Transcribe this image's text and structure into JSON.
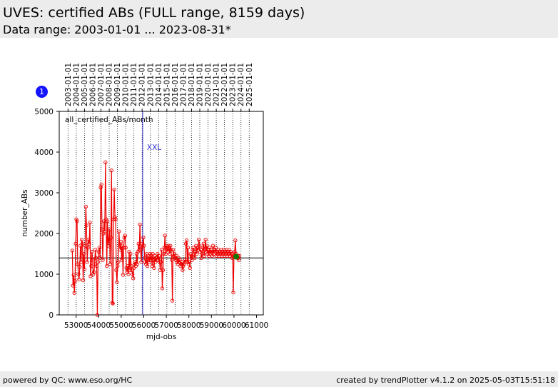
{
  "header": {
    "title": "UVES: certified ABs (FULL range, 8159 days)",
    "subtitle": "Data range: 2003-01-01 ... 2023-08-31*"
  },
  "badge": {
    "label": "1",
    "color": "#1414ff"
  },
  "footer": {
    "left": "powered by QC: www.eso.org/HC",
    "right": "created by trendPlotter v4.1.2 on 2025-05-03T15:51:18"
  },
  "colors": {
    "series": "#ee0000",
    "last_point": "#117700",
    "marker": "#3333cc",
    "reference": "#000000"
  },
  "chart_data": {
    "type": "line",
    "xlabel": "mjd-obs",
    "ylabel": "number_ABs",
    "xlim": [
      52250,
      61300
    ],
    "ylim": [
      0,
      5000
    ],
    "xticks": [
      53000,
      54000,
      55000,
      56000,
      57000,
      58000,
      59000,
      60000,
      61000
    ],
    "yticks": [
      0,
      1000,
      2000,
      3000,
      4000,
      5000
    ],
    "year_ticks": [
      {
        "label": "2003-01-01",
        "mjd": 52640
      },
      {
        "label": "2004-01-01",
        "mjd": 53005
      },
      {
        "label": "2005-01-01",
        "mjd": 53371
      },
      {
        "label": "2006-01-01",
        "mjd": 53736
      },
      {
        "label": "2007-01-01",
        "mjd": 54101
      },
      {
        "label": "2008-01-01",
        "mjd": 54466
      },
      {
        "label": "2009-01-01",
        "mjd": 54832
      },
      {
        "label": "2010-01-01",
        "mjd": 55197
      },
      {
        "label": "2011-01-01",
        "mjd": 55562
      },
      {
        "label": "2012-01-01",
        "mjd": 55927
      },
      {
        "label": "2013-01-01",
        "mjd": 56293
      },
      {
        "label": "2014-01-01",
        "mjd": 56658
      },
      {
        "label": "2015-01-01",
        "mjd": 57023
      },
      {
        "label": "2016-01-01",
        "mjd": 57388
      },
      {
        "label": "2017-01-01",
        "mjd": 57754
      },
      {
        "label": "2018-01-01",
        "mjd": 58119
      },
      {
        "label": "2019-01-01",
        "mjd": 58484
      },
      {
        "label": "2020-01-01",
        "mjd": 58849
      },
      {
        "label": "2021-01-01",
        "mjd": 59215
      },
      {
        "label": "2022-01-01",
        "mjd": 59580
      },
      {
        "label": "2023-01-01",
        "mjd": 59945
      },
      {
        "label": "2024-01-01",
        "mjd": 60310
      },
      {
        "label": "2025-01-01",
        "mjd": 60676
      }
    ],
    "annotation": "all_certified_ABs/month",
    "marker_line": {
      "label": "XXL",
      "mjd": 55950
    },
    "reference_line": 1400,
    "series": [
      {
        "values": [
          [
            52830,
            1580
          ],
          [
            52860,
            720
          ],
          [
            52890,
            980
          ],
          [
            52920,
            540
          ],
          [
            52950,
            830
          ],
          [
            52980,
            1750
          ],
          [
            53010,
            2350
          ],
          [
            53040,
            2300
          ],
          [
            53070,
            1250
          ],
          [
            53100,
            1000
          ],
          [
            53130,
            870
          ],
          [
            53160,
            1180
          ],
          [
            53190,
            1700
          ],
          [
            53220,
            1300
          ],
          [
            53250,
            1850
          ],
          [
            53280,
            1750
          ],
          [
            53310,
            850
          ],
          [
            53340,
            1500
          ],
          [
            53370,
            1120
          ],
          [
            53400,
            1700
          ],
          [
            53430,
            2660
          ],
          [
            53460,
            2200
          ],
          [
            53490,
            1300
          ],
          [
            53520,
            1650
          ],
          [
            53550,
            1850
          ],
          [
            53580,
            1750
          ],
          [
            53610,
            2270
          ],
          [
            53640,
            950
          ],
          [
            53670,
            1200
          ],
          [
            53700,
            1550
          ],
          [
            53730,
            1350
          ],
          [
            53760,
            1000
          ],
          [
            53790,
            1050
          ],
          [
            53820,
            1250
          ],
          [
            53850,
            1600
          ],
          [
            53880,
            1400
          ],
          [
            53910,
            1200
          ],
          [
            53940,
            0
          ],
          [
            53970,
            1300
          ],
          [
            54000,
            1550
          ],
          [
            54030,
            1650
          ],
          [
            54060,
            1400
          ],
          [
            54090,
            3130
          ],
          [
            54120,
            3200
          ],
          [
            54150,
            2100
          ],
          [
            54180,
            1350
          ],
          [
            54210,
            2000
          ],
          [
            54240,
            2300
          ],
          [
            54270,
            2050
          ],
          [
            54300,
            3750
          ],
          [
            54330,
            2350
          ],
          [
            54360,
            1200
          ],
          [
            54390,
            2300
          ],
          [
            54420,
            1700
          ],
          [
            54450,
            1850
          ],
          [
            54480,
            2100
          ],
          [
            54510,
            1250
          ],
          [
            54540,
            1900
          ],
          [
            54570,
            3550
          ],
          [
            54600,
            300
          ],
          [
            54630,
            280
          ],
          [
            54660,
            2350
          ],
          [
            54690,
            3080
          ],
          [
            54720,
            2400
          ],
          [
            54750,
            2350
          ],
          [
            54780,
            1100
          ],
          [
            54810,
            800
          ],
          [
            54840,
            1200
          ],
          [
            54870,
            1300
          ],
          [
            54900,
            2050
          ],
          [
            54930,
            1700
          ],
          [
            54960,
            1600
          ],
          [
            54990,
            1800
          ],
          [
            55020,
            1350
          ],
          [
            55050,
            1700
          ],
          [
            55080,
            980
          ],
          [
            55110,
            1650
          ],
          [
            55140,
            1900
          ],
          [
            55170,
            1950
          ],
          [
            55200,
            1650
          ],
          [
            55230,
            1150
          ],
          [
            55260,
            1050
          ],
          [
            55290,
            1200
          ],
          [
            55320,
            1000
          ],
          [
            55350,
            1550
          ],
          [
            55380,
            1100
          ],
          [
            55410,
            1500
          ],
          [
            55440,
            1200
          ],
          [
            55470,
            1100
          ],
          [
            55500,
            1000
          ],
          [
            55530,
            900
          ],
          [
            55560,
            1150
          ],
          [
            55590,
            1250
          ],
          [
            55620,
            1300
          ],
          [
            55650,
            1200
          ],
          [
            55680,
            1500
          ],
          [
            55710,
            1250
          ],
          [
            55740,
            1550
          ],
          [
            55770,
            1750
          ],
          [
            55800,
            1600
          ],
          [
            55830,
            2220
          ],
          [
            55860,
            1600
          ],
          [
            55890,
            1300
          ],
          [
            55920,
            1750
          ],
          [
            55950,
            1650
          ],
          [
            55980,
            1900
          ],
          [
            56010,
            1700
          ],
          [
            56040,
            1400
          ],
          [
            56070,
            1300
          ],
          [
            56100,
            1250
          ],
          [
            56130,
            1500
          ],
          [
            56160,
            1200
          ],
          [
            56190,
            1350
          ],
          [
            56220,
            1450
          ],
          [
            56250,
            1300
          ],
          [
            56280,
            1500
          ],
          [
            56310,
            1350
          ],
          [
            56340,
            1450
          ],
          [
            56370,
            1200
          ],
          [
            56400,
            1500
          ],
          [
            56430,
            1350
          ],
          [
            56460,
            1150
          ],
          [
            56490,
            1450
          ],
          [
            56520,
            1300
          ],
          [
            56550,
            1400
          ],
          [
            56580,
            1350
          ],
          [
            56610,
            1500
          ],
          [
            56640,
            1350
          ],
          [
            56670,
            1450
          ],
          [
            56700,
            1300
          ],
          [
            56730,
            1100
          ],
          [
            56760,
            1300
          ],
          [
            56790,
            1600
          ],
          [
            56820,
            650
          ],
          [
            56850,
            1100
          ],
          [
            56880,
            1500
          ],
          [
            56910,
            1650
          ],
          [
            56940,
            1950
          ],
          [
            56970,
            1500
          ],
          [
            57000,
            1700
          ],
          [
            57030,
            1600
          ],
          [
            57060,
            1550
          ],
          [
            57090,
            1700
          ],
          [
            57120,
            1650
          ],
          [
            57150,
            1500
          ],
          [
            57180,
            1700
          ],
          [
            57210,
            1600
          ],
          [
            57240,
            1350
          ],
          [
            57270,
            350
          ],
          [
            57300,
            1600
          ],
          [
            57330,
            1450
          ],
          [
            57360,
            1500
          ],
          [
            57390,
            1400
          ],
          [
            57420,
            1350
          ],
          [
            57450,
            1450
          ],
          [
            57480,
            1300
          ],
          [
            57510,
            1250
          ],
          [
            57540,
            1400
          ],
          [
            57570,
            1300
          ],
          [
            57600,
            1350
          ],
          [
            57630,
            1200
          ],
          [
            57660,
            1250
          ],
          [
            57690,
            1300
          ],
          [
            57720,
            1100
          ],
          [
            57750,
            1200
          ],
          [
            57780,
            1250
          ],
          [
            57810,
            1350
          ],
          [
            57840,
            1300
          ],
          [
            57870,
            1750
          ],
          [
            57900,
            1830
          ],
          [
            57930,
            1300
          ],
          [
            57960,
            1650
          ],
          [
            57990,
            1250
          ],
          [
            58020,
            1300
          ],
          [
            58050,
            1150
          ],
          [
            58080,
            1500
          ],
          [
            58110,
            1450
          ],
          [
            58140,
            1350
          ],
          [
            58170,
            1600
          ],
          [
            58200,
            1650
          ],
          [
            58230,
            1500
          ],
          [
            58260,
            1400
          ],
          [
            58290,
            1550
          ],
          [
            58320,
            1700
          ],
          [
            58350,
            1500
          ],
          [
            58380,
            1650
          ],
          [
            58410,
            1600
          ],
          [
            58440,
            1850
          ],
          [
            58470,
            1700
          ],
          [
            58500,
            1550
          ],
          [
            58530,
            1600
          ],
          [
            58560,
            1400
          ],
          [
            58590,
            1500
          ],
          [
            58620,
            1650
          ],
          [
            58650,
            1750
          ],
          [
            58680,
            1450
          ],
          [
            58710,
            1600
          ],
          [
            58740,
            1850
          ],
          [
            58770,
            1550
          ],
          [
            58800,
            1700
          ],
          [
            58830,
            1500
          ],
          [
            58860,
            1600
          ],
          [
            58890,
            1450
          ],
          [
            58920,
            1650
          ],
          [
            58950,
            1500
          ],
          [
            58980,
            1600
          ],
          [
            59010,
            1550
          ],
          [
            59040,
            1450
          ],
          [
            59070,
            1700
          ],
          [
            59100,
            1500
          ],
          [
            59130,
            1600
          ],
          [
            59160,
            1550
          ],
          [
            59190,
            1650
          ],
          [
            59220,
            1450
          ],
          [
            59250,
            1550
          ],
          [
            59280,
            1500
          ],
          [
            59310,
            1600
          ],
          [
            59340,
            1450
          ],
          [
            59370,
            1550
          ],
          [
            59400,
            1500
          ],
          [
            59430,
            1600
          ],
          [
            59460,
            1450
          ],
          [
            59490,
            1550
          ],
          [
            59520,
            1500
          ],
          [
            59550,
            1600
          ],
          [
            59580,
            1450
          ],
          [
            59610,
            1550
          ],
          [
            59640,
            1500
          ],
          [
            59670,
            1600
          ],
          [
            59700,
            1450
          ],
          [
            59730,
            1550
          ],
          [
            59760,
            1500
          ],
          [
            59790,
            1600
          ],
          [
            59820,
            1450
          ],
          [
            59850,
            1550
          ],
          [
            59880,
            1500
          ],
          [
            59910,
            1400
          ],
          [
            59940,
            1500
          ],
          [
            59970,
            550
          ],
          [
            60000,
            1450
          ],
          [
            60030,
            1550
          ],
          [
            60060,
            1830
          ],
          [
            60090,
            1500
          ],
          [
            60120,
            1450
          ],
          [
            60150,
            1400
          ],
          [
            60180,
            1450
          ],
          [
            60210,
            1350
          ],
          [
            60240,
            1450
          ]
        ]
      }
    ],
    "last_point": [
      60100,
      1430
    ]
  }
}
